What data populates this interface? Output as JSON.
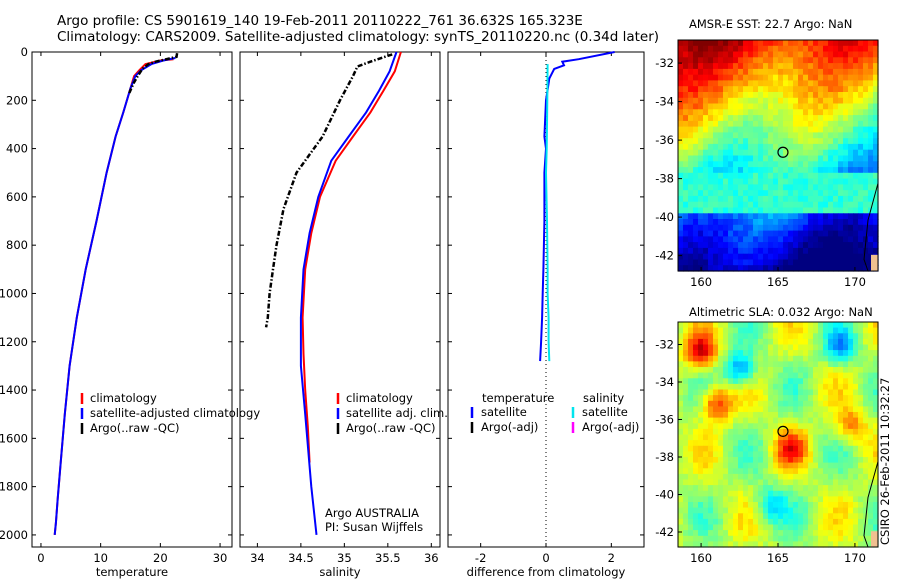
{
  "header": {
    "line1": "Argo profile: CS 5901619_140 19-Feb-2011 20110222_761 36.632S 165.323E",
    "line2": "Climatology: CARS2009. Satellite-adjusted climatology: synTS_20110220.nc (0.34d later)"
  },
  "credit": "CSIRO 26-Feb-2011 10:32:27",
  "colors": {
    "climatology": "#ff0000",
    "satellite": "#0000ff",
    "argo": "#000000",
    "salinity_satellite": "#00e5ee",
    "salinity_argo": "#ff00ff"
  },
  "chart_data": [
    {
      "type": "line",
      "panel": "temperature",
      "xlabel": "temperature",
      "ylabel": "",
      "xlim": [
        -1.5,
        32
      ],
      "ylim": [
        2050,
        0
      ],
      "xticks": [
        "0",
        "10",
        "20",
        "30"
      ],
      "yticks": [
        "0",
        "200",
        "400",
        "600",
        "800",
        "1000",
        "1200",
        "1400",
        "1600",
        "1800",
        "2000"
      ],
      "legend": {
        "position": "lower-center",
        "entries": [
          "climatology",
          "satellite-adjusted climatology",
          "Argo(..raw -QC)"
        ]
      },
      "series": [
        {
          "name": "climatology",
          "color": "#ff0000",
          "x": [
            22.2,
            20.0,
            17.5,
            16.5,
            15.6,
            15.0,
            13.8,
            12.5,
            11.0,
            9.3,
            7.5,
            6.0,
            4.8,
            4.0,
            3.3,
            2.8,
            2.5,
            2.3
          ],
          "y": [
            30,
            35,
            50,
            75,
            100,
            150,
            250,
            350,
            500,
            700,
            900,
            1100,
            1300,
            1500,
            1700,
            1850,
            1950,
            2000
          ]
        },
        {
          "name": "satellite-adjusted climatology",
          "color": "#0000ff",
          "x": [
            22.5,
            20.5,
            18.5,
            16.8,
            15.8,
            15.0,
            13.8,
            12.5,
            11.0,
            9.3,
            7.5,
            6.0,
            4.8,
            4.0,
            3.3,
            2.8,
            2.5,
            2.3
          ],
          "y": [
            25,
            35,
            50,
            75,
            100,
            150,
            250,
            350,
            500,
            700,
            900,
            1100,
            1300,
            1500,
            1700,
            1850,
            1950,
            2000
          ]
        },
        {
          "name": "Argo(..raw -QC)",
          "color": "#000000",
          "x": [
            22.8,
            22.7,
            21.0,
            19.2,
            18.0,
            17.0,
            16.2,
            15.5,
            14.8
          ],
          "y": [
            5,
            20,
            30,
            40,
            50,
            70,
            100,
            130,
            170
          ]
        }
      ]
    },
    {
      "type": "line",
      "panel": "salinity",
      "xlabel": "salinity",
      "ylabel": "",
      "xlim": [
        33.8,
        36.1
      ],
      "ylim": [
        2050,
        0
      ],
      "xticks": [
        "34",
        "34.5",
        "35",
        "35.5",
        "36"
      ],
      "yticks": [],
      "legend": {
        "position": "lower-right",
        "entries": [
          "climatology",
          "satellite adj. clim.",
          "Argo(..raw -QC)"
        ]
      },
      "annotation": [
        "Argo AUSTRALIA",
        "PI: Susan Wijffels"
      ],
      "series": [
        {
          "name": "climatology",
          "color": "#ff0000",
          "x": [
            35.65,
            35.58,
            35.45,
            35.3,
            35.1,
            34.9,
            34.72,
            34.62,
            34.55,
            34.52,
            34.53,
            34.55,
            34.58,
            34.6
          ],
          "y": [
            0,
            80,
            160,
            250,
            350,
            450,
            600,
            750,
            900,
            1100,
            1250,
            1400,
            1550,
            1700
          ]
        },
        {
          "name": "satellite adj. clim.",
          "color": "#0000ff",
          "x": [
            35.6,
            35.52,
            35.4,
            35.25,
            35.05,
            34.85,
            34.7,
            34.6,
            34.53,
            34.5,
            34.5,
            34.55,
            34.62,
            34.68
          ],
          "y": [
            0,
            80,
            160,
            250,
            350,
            450,
            600,
            750,
            900,
            1100,
            1300,
            1500,
            1800,
            2000
          ]
        },
        {
          "name": "Argo(..raw -QC)",
          "color": "#000000",
          "x": [
            35.55,
            35.3,
            35.15,
            35.1,
            34.95,
            34.75,
            34.45,
            34.3,
            34.22,
            34.18,
            34.14,
            34.12,
            34.1
          ],
          "y": [
            10,
            40,
            60,
            100,
            200,
            350,
            500,
            650,
            800,
            900,
            1000,
            1100,
            1140
          ]
        }
      ]
    },
    {
      "type": "line",
      "panel": "difference",
      "xlabel": "difference from climatology",
      "ylabel": "",
      "xlim": [
        -3,
        3
      ],
      "ylim": [
        2050,
        0
      ],
      "xticks": [
        "-2",
        "0",
        "2"
      ],
      "yticks": [],
      "legend": {
        "position": "lower-center",
        "columns": [
          {
            "header": "temperature",
            "entries": [
              "satellite",
              "Argo(-adj)"
            ]
          },
          {
            "header": "salinity",
            "entries": [
              "satellite",
              "Argo(-adj)"
            ]
          }
        ]
      },
      "series": [
        {
          "name": "temperature satellite",
          "color": "#0000ff",
          "x": [
            2.1,
            1.0,
            0.5,
            0.55,
            0.25,
            0.1,
            0.0,
            -0.05,
            0.0,
            -0.05,
            -0.05,
            -0.08,
            -0.1,
            -0.12,
            -0.15,
            -0.18
          ],
          "y": [
            0,
            30,
            40,
            55,
            70,
            110,
            200,
            350,
            400,
            500,
            700,
            900,
            1000,
            1100,
            1200,
            1280
          ]
        },
        {
          "name": "salinity satellite",
          "color": "#00e5ee",
          "x": [
            0.05,
            0.04,
            0.02,
            0.0,
            0.03,
            0.05,
            0.05,
            0.08,
            0.08,
            0.1
          ],
          "y": [
            50,
            200,
            400,
            500,
            700,
            900,
            1000,
            1100,
            1200,
            1280
          ]
        }
      ]
    },
    {
      "type": "heatmap",
      "panel": "sst_map",
      "title": "AMSR-E SST: 22.7 Argo: NaN",
      "xlim": [
        158.5,
        171.5
      ],
      "ylim": [
        -42.8,
        -30.8
      ],
      "xticks": [
        "160",
        "165",
        "170"
      ],
      "yticks": [
        "-32",
        "-34",
        "-36",
        "-38",
        "-40",
        "-42"
      ],
      "marker": {
        "lon": 165.323,
        "lat": -36.632
      }
    },
    {
      "type": "heatmap",
      "panel": "sla_map",
      "title": "Altimetric SLA: 0.032 Argo: NaN",
      "xlim": [
        158.5,
        171.5
      ],
      "ylim": [
        -42.8,
        -30.8
      ],
      "xticks": [
        "160",
        "165",
        "170"
      ],
      "yticks": [
        "-32",
        "-34",
        "-36",
        "-38",
        "-40",
        "-42"
      ],
      "marker": {
        "lon": 165.323,
        "lat": -36.632
      }
    }
  ]
}
